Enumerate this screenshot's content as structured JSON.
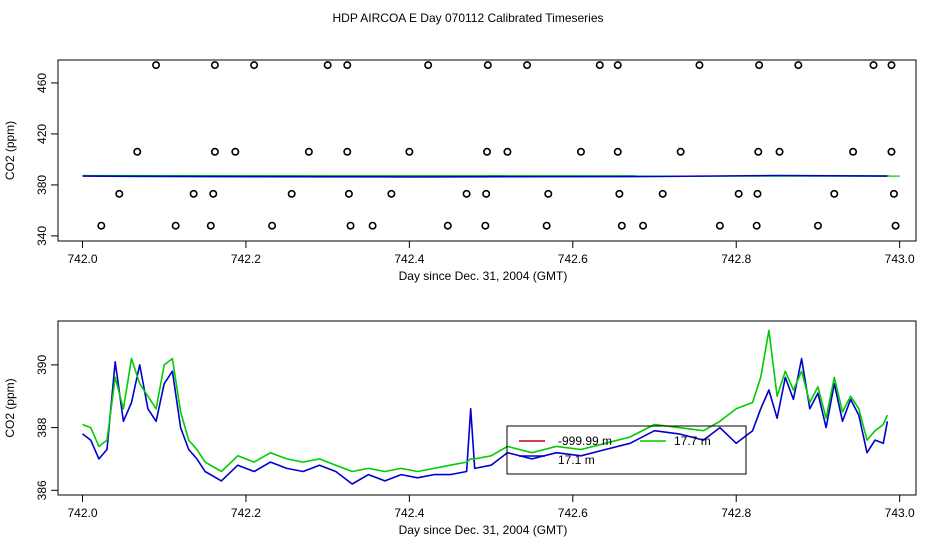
{
  "page_title": "HDP AIRCOA E  Day 070112  Calibrated Timeseries",
  "colors": {
    "green": "#00cc00",
    "blue": "#0000cc",
    "red": "#cc0000",
    "black": "#000000"
  },
  "chart_data": [
    {
      "type": "scatter",
      "title": "",
      "xlabel": "Day since Dec. 31, 2004 (GMT)",
      "ylabel": "CO2 (ppm)",
      "xlim": [
        741.97,
        743.02
      ],
      "ylim": [
        336,
        478
      ],
      "xticks": [
        "742.0",
        "742.2",
        "742.4",
        "742.6",
        "742.8",
        "743.0"
      ],
      "xtick_values": [
        742.0,
        742.2,
        742.4,
        742.6,
        742.8,
        743.0
      ],
      "yticks": [
        "340",
        "380",
        "420",
        "460"
      ],
      "ytick_values": [
        340,
        380,
        420,
        460
      ],
      "points": [
        [
          742.09,
          474
        ],
        [
          742.162,
          474
        ],
        [
          742.21,
          474
        ],
        [
          742.3,
          474
        ],
        [
          742.324,
          474
        ],
        [
          742.423,
          474
        ],
        [
          742.496,
          474
        ],
        [
          742.544,
          474
        ],
        [
          742.633,
          474
        ],
        [
          742.655,
          474
        ],
        [
          742.755,
          474
        ],
        [
          742.828,
          474
        ],
        [
          742.876,
          474
        ],
        [
          742.968,
          474
        ],
        [
          742.99,
          474
        ],
        [
          742.067,
          406
        ],
        [
          742.162,
          406
        ],
        [
          742.187,
          406
        ],
        [
          742.277,
          406
        ],
        [
          742.324,
          406
        ],
        [
          742.4,
          406
        ],
        [
          742.495,
          406
        ],
        [
          742.52,
          406
        ],
        [
          742.61,
          406
        ],
        [
          742.655,
          406
        ],
        [
          742.732,
          406
        ],
        [
          742.827,
          406
        ],
        [
          742.853,
          406
        ],
        [
          742.943,
          406
        ],
        [
          742.99,
          406
        ],
        [
          742.045,
          373
        ],
        [
          742.136,
          373
        ],
        [
          742.16,
          373
        ],
        [
          742.256,
          373
        ],
        [
          742.326,
          373
        ],
        [
          742.378,
          373
        ],
        [
          742.47,
          373
        ],
        [
          742.494,
          373
        ],
        [
          742.57,
          373
        ],
        [
          742.657,
          373
        ],
        [
          742.71,
          373
        ],
        [
          742.803,
          373
        ],
        [
          742.826,
          373
        ],
        [
          742.92,
          373
        ],
        [
          742.993,
          373
        ],
        [
          742.023,
          348
        ],
        [
          742.114,
          348
        ],
        [
          742.157,
          348
        ],
        [
          742.232,
          348
        ],
        [
          742.328,
          348
        ],
        [
          742.355,
          348
        ],
        [
          742.447,
          348
        ],
        [
          742.493,
          348
        ],
        [
          742.568,
          348
        ],
        [
          742.66,
          348
        ],
        [
          742.686,
          348
        ],
        [
          742.78,
          348
        ],
        [
          742.825,
          348
        ],
        [
          742.9,
          348
        ],
        [
          742.995,
          348
        ]
      ],
      "series": [
        {
          "color": "#00cc00",
          "x": [
            742.0,
            743.0
          ],
          "y": [
            387.2,
            387.0
          ]
        },
        {
          "color": "#0000cc",
          "x": [
            742.0,
            742.15,
            742.4,
            742.7,
            742.85,
            742.985
          ],
          "y": [
            386.9,
            386.5,
            386.3,
            386.6,
            387.4,
            386.9
          ]
        }
      ]
    },
    {
      "type": "line",
      "title": "",
      "xlabel": "Day since Dec. 31, 2004 (GMT)",
      "ylabel": "CO2 (ppm)",
      "xlim": [
        741.97,
        743.02
      ],
      "ylim": [
        385.85,
        391.4
      ],
      "xticks": [
        "742.0",
        "742.2",
        "742.4",
        "742.6",
        "742.8",
        "743.0"
      ],
      "xtick_values": [
        742.0,
        742.2,
        742.4,
        742.6,
        742.8,
        743.0
      ],
      "yticks": [
        "386",
        "388",
        "390"
      ],
      "ytick_values": [
        386,
        388,
        390
      ],
      "series": [
        {
          "name": "17.1 m",
          "color": "#0000cc",
          "x": [
            742.0,
            742.01,
            742.02,
            742.03,
            742.04,
            742.05,
            742.06,
            742.07,
            742.08,
            742.09,
            742.1,
            742.11,
            742.12,
            742.13,
            742.14,
            742.15,
            742.17,
            742.19,
            742.21,
            742.23,
            742.25,
            742.27,
            742.29,
            742.31,
            742.33,
            742.35,
            742.37,
            742.39,
            742.41,
            742.43,
            742.45,
            742.47,
            742.475,
            742.48,
            742.5,
            742.52,
            742.55,
            742.58,
            742.61,
            742.64,
            742.67,
            742.7,
            742.73,
            742.76,
            742.78,
            742.8,
            742.82,
            742.83,
            742.84,
            742.85,
            742.86,
            742.87,
            742.88,
            742.89,
            742.9,
            742.91,
            742.92,
            742.93,
            742.94,
            742.95,
            742.96,
            742.97,
            742.98,
            742.985
          ],
          "y": [
            387.8,
            387.6,
            387.0,
            387.3,
            390.1,
            388.2,
            388.8,
            390.0,
            388.6,
            388.2,
            389.4,
            389.8,
            388.0,
            387.3,
            387.0,
            386.6,
            386.3,
            386.8,
            386.6,
            386.9,
            386.7,
            386.6,
            386.8,
            386.6,
            386.2,
            386.5,
            386.3,
            386.5,
            386.4,
            386.5,
            386.5,
            386.6,
            388.6,
            386.7,
            386.8,
            387.2,
            387.0,
            387.2,
            387.1,
            387.3,
            387.5,
            387.9,
            387.8,
            387.6,
            388.0,
            387.5,
            387.9,
            388.6,
            389.2,
            388.3,
            389.6,
            388.9,
            390.2,
            388.6,
            389.1,
            388.0,
            389.4,
            388.2,
            388.9,
            388.4,
            387.2,
            387.6,
            387.5,
            388.2
          ]
        },
        {
          "name": "",
          "color": "#00cc00",
          "x": [
            742.0,
            742.01,
            742.02,
            742.03,
            742.04,
            742.05,
            742.06,
            742.07,
            742.08,
            742.09,
            742.1,
            742.11,
            742.12,
            742.13,
            742.14,
            742.15,
            742.17,
            742.19,
            742.21,
            742.23,
            742.25,
            742.27,
            742.29,
            742.31,
            742.33,
            742.35,
            742.37,
            742.39,
            742.41,
            742.43,
            742.45,
            742.47,
            742.475,
            742.48,
            742.5,
            742.52,
            742.55,
            742.58,
            742.61,
            742.64,
            742.67,
            742.7,
            742.73,
            742.76,
            742.78,
            742.8,
            742.82,
            742.83,
            742.84,
            742.85,
            742.86,
            742.87,
            742.88,
            742.89,
            742.9,
            742.91,
            742.92,
            742.93,
            742.94,
            742.95,
            742.96,
            742.97,
            742.98,
            742.985
          ],
          "y": [
            388.1,
            388.0,
            387.4,
            387.6,
            389.6,
            388.6,
            390.2,
            389.4,
            389.0,
            388.6,
            390.0,
            390.2,
            388.5,
            387.6,
            387.3,
            386.9,
            386.6,
            387.1,
            386.9,
            387.2,
            387.0,
            386.9,
            387.0,
            386.8,
            386.6,
            386.7,
            386.6,
            386.7,
            386.6,
            386.7,
            386.8,
            386.9,
            387.0,
            387.0,
            387.1,
            387.4,
            387.2,
            387.4,
            387.3,
            387.5,
            387.7,
            388.1,
            388.0,
            387.9,
            388.2,
            388.6,
            388.8,
            389.6,
            391.1,
            389.0,
            389.8,
            389.2,
            389.8,
            388.8,
            389.3,
            388.3,
            389.6,
            388.5,
            389.0,
            388.6,
            387.6,
            387.9,
            388.1,
            388.4
          ]
        },
        {
          "name": "-999.99 m",
          "color": "#cc0000",
          "x": [],
          "y": []
        }
      ],
      "legend": {
        "placement": "center-right",
        "entries": [
          {
            "label": "-999.99 m",
            "color": "#cc0000"
          },
          {
            "label": "17.7 m",
            "color": "#00cc00"
          },
          {
            "label": "17.1 m",
            "color": "#0000cc"
          }
        ]
      }
    }
  ]
}
